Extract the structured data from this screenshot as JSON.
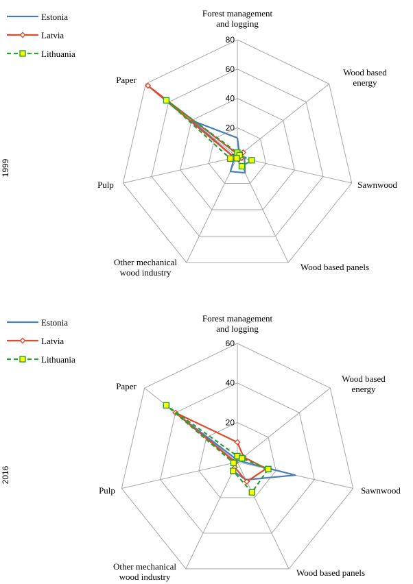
{
  "chart_data": [
    {
      "type": "radar",
      "row_label": "1999",
      "categories": [
        "Forest management and logging",
        "Wood based energy",
        "Sawnwood",
        "Wood based panels",
        "Other mechanical wood industry",
        "Pulp",
        "Paper"
      ],
      "category_lines": [
        [
          "Forest management",
          "and logging"
        ],
        [
          "Wood based",
          "energy"
        ],
        [
          "Sawnwood"
        ],
        [
          "Wood based panels"
        ],
        [
          "Other mechanical",
          "wood industry"
        ],
        [
          "Pulp"
        ],
        [
          "Paper"
        ]
      ],
      "rlim": [
        0,
        80
      ],
      "ticks": [
        "0",
        "20",
        "40",
        "60",
        "80"
      ],
      "tick_values": [
        0,
        20,
        40,
        60,
        80
      ],
      "legend_position": "top-left",
      "series": [
        {
          "name": "Estonia",
          "color": "#4a7ebb",
          "marker": "none",
          "values": [
            13,
            2,
            5,
            12,
            11,
            2,
            40
          ]
        },
        {
          "name": "Latvia",
          "color": "#e04a2b",
          "marker": "diamond",
          "values": [
            2,
            5,
            3,
            2,
            1,
            2,
            78
          ]
        },
        {
          "name": "Lithuania",
          "color": "#2aa032",
          "marker": "square",
          "values": [
            3,
            2,
            10,
            7,
            1,
            5,
            62
          ]
        }
      ]
    },
    {
      "type": "radar",
      "row_label": "2016",
      "categories": [
        "Forest management and logging",
        "Wood based energy",
        "Sawnwood",
        "Wood based panels",
        "Other mechanical wood industry",
        "Pulp",
        "Paper"
      ],
      "category_lines": [
        [
          "Forest management",
          "and logging"
        ],
        [
          "Wood based",
          "energy"
        ],
        [
          "Sawnwood"
        ],
        [
          "Wood based panels"
        ],
        [
          "Other mechanical",
          "wood industry"
        ],
        [
          "Pulp"
        ],
        [
          "Paper"
        ]
      ],
      "rlim": [
        0,
        60
      ],
      "ticks": [
        "0",
        "20",
        "40",
        "60"
      ],
      "tick_values": [
        0,
        20,
        40,
        60
      ],
      "legend_position": "top-left",
      "series": [
        {
          "name": "Estonia",
          "color": "#4a7ebb",
          "marker": "none",
          "values": [
            1,
            1,
            30,
            10,
            5,
            1,
            35
          ]
        },
        {
          "name": "Latvia",
          "color": "#e04a2b",
          "marker": "diamond",
          "values": [
            10,
            4,
            15,
            11,
            3,
            1,
            40
          ]
        },
        {
          "name": "Lithuania",
          "color": "#2aa032",
          "marker": "square",
          "values": [
            3,
            3,
            16,
            17,
            5,
            2,
            46
          ]
        }
      ]
    }
  ]
}
